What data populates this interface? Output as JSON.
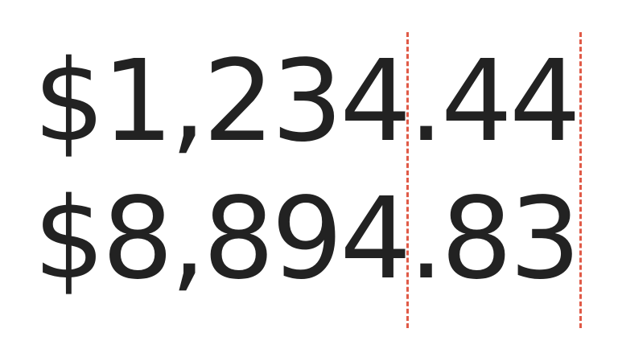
{
  "amounts": {
    "first": "$1,234.44",
    "second": "$8,894.83"
  },
  "colors": {
    "text": "#222222",
    "guide": "#e05a47",
    "background": "#ffffff"
  }
}
